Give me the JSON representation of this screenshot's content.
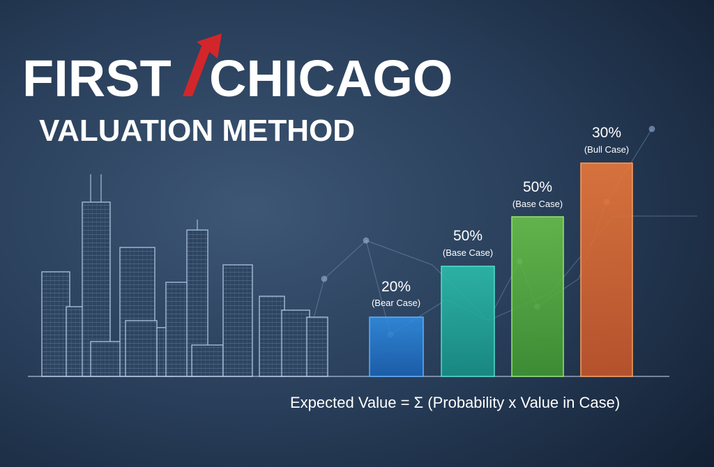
{
  "header": {
    "brand_left": "FIRST",
    "brand_right": "CHICAGO",
    "subtitle": "VALUATION METHOD"
  },
  "cases": [
    {
      "probability": "20%",
      "label": "(Bear Case)"
    },
    {
      "probability": "50%",
      "label": "(Base Case)"
    },
    {
      "probability": "50%",
      "label": "(Base Case)"
    },
    {
      "probability": "30%",
      "label": "(Bull Case)"
    }
  ],
  "formula": "Expected Value = Σ (Probability x Value in Case)"
}
